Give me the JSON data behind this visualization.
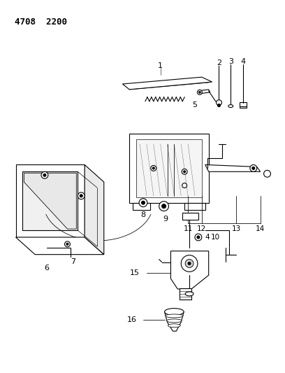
{
  "title": "4708  2200",
  "bg": "#ffffff",
  "lc": "#000000",
  "figsize": [
    4.08,
    5.33
  ],
  "dpi": 100
}
